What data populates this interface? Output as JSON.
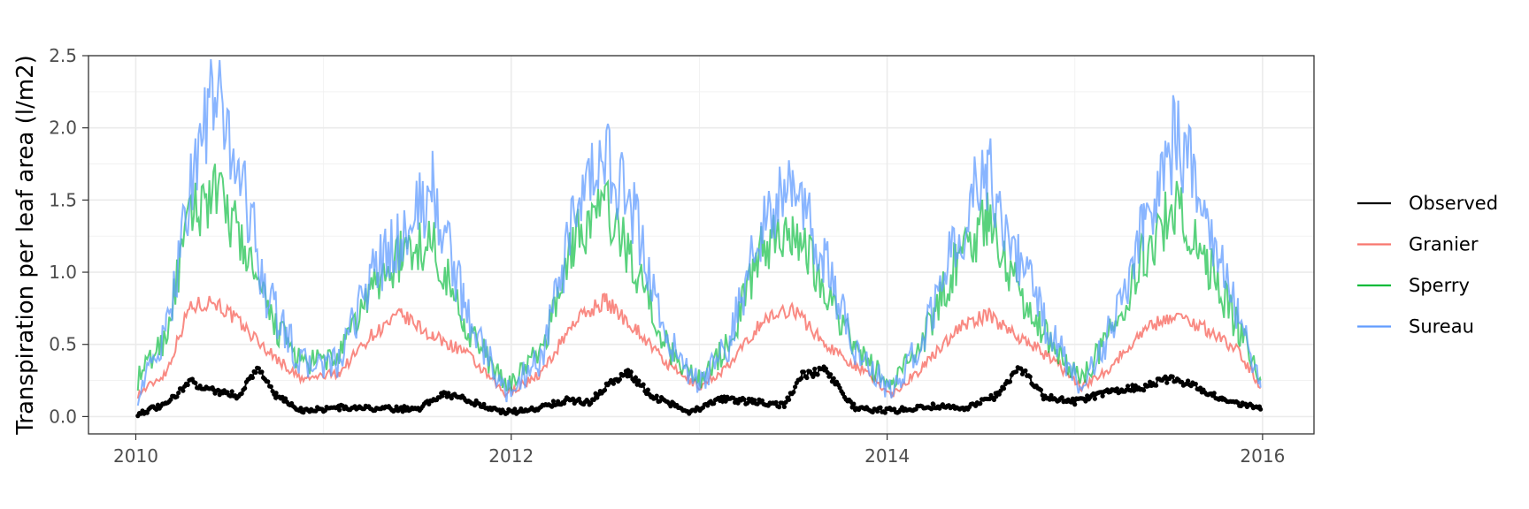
{
  "chart_data": {
    "type": "line",
    "title": "",
    "xlabel": "",
    "ylabel": "Transpiration per leaf area (l/m2)",
    "xlim": [
      "2009-10-01",
      "2016-04-10"
    ],
    "ylim": [
      -0.12,
      2.5
    ],
    "x_ticks": [
      "2010",
      "2012",
      "2014",
      "2016"
    ],
    "y_ticks": [
      "0.0",
      "0.5",
      "1.0",
      "1.5",
      "2.0",
      "2.5"
    ],
    "grid": true,
    "legend_position": "right",
    "series": [
      {
        "name": "Observed",
        "color": "#000000",
        "points": true,
        "note": "seasonal daily series (key points)",
        "x": [
          "2010-01-05",
          "2010-03-01",
          "2010-04-15",
          "2010-06-01",
          "2010-07-20",
          "2010-08-25",
          "2010-10-01",
          "2010-11-20",
          "2011-02-01",
          "2011-06-01",
          "2011-07-10",
          "2011-08-20",
          "2011-10-01",
          "2011-12-15",
          "2012-02-01",
          "2012-04-15",
          "2012-06-01",
          "2012-07-15",
          "2012-08-15",
          "2012-10-01",
          "2012-12-15",
          "2013-02-15",
          "2013-04-15",
          "2013-06-15",
          "2013-07-20",
          "2013-09-01",
          "2013-11-01",
          "2014-01-15",
          "2014-04-01",
          "2014-06-01",
          "2014-08-01",
          "2014-09-15",
          "2014-11-01",
          "2015-01-01",
          "2015-03-15",
          "2015-05-15",
          "2015-07-01",
          "2015-08-15",
          "2015-10-15",
          "2015-12-28"
        ],
        "values": [
          0.02,
          0.08,
          0.24,
          0.18,
          0.14,
          0.34,
          0.14,
          0.04,
          0.06,
          0.05,
          0.06,
          0.16,
          0.12,
          0.03,
          0.04,
          0.11,
          0.1,
          0.24,
          0.3,
          0.14,
          0.03,
          0.12,
          0.1,
          0.08,
          0.28,
          0.32,
          0.05,
          0.04,
          0.07,
          0.05,
          0.14,
          0.34,
          0.14,
          0.1,
          0.18,
          0.2,
          0.26,
          0.22,
          0.12,
          0.05
        ]
      },
      {
        "name": "Granier",
        "color": "#f8766d",
        "x": [
          "2010-01-05",
          "2010-03-01",
          "2010-04-15",
          "2010-06-01",
          "2010-07-20",
          "2010-09-15",
          "2010-11-20",
          "2011-02-01",
          "2011-04-01",
          "2011-06-01",
          "2011-08-01",
          "2011-10-01",
          "2011-12-20",
          "2012-03-01",
          "2012-05-01",
          "2012-07-01",
          "2012-09-01",
          "2012-11-01",
          "2013-01-01",
          "2013-03-01",
          "2013-05-01",
          "2013-07-01",
          "2013-09-01",
          "2013-11-01",
          "2014-01-10",
          "2014-03-15",
          "2014-05-15",
          "2014-07-15",
          "2014-09-15",
          "2014-11-15",
          "2015-01-15",
          "2015-03-15",
          "2015-05-15",
          "2015-07-15",
          "2015-09-15",
          "2015-11-15",
          "2015-12-28"
        ],
        "values": [
          0.15,
          0.3,
          0.75,
          0.8,
          0.65,
          0.45,
          0.25,
          0.3,
          0.55,
          0.7,
          0.55,
          0.45,
          0.15,
          0.3,
          0.65,
          0.8,
          0.6,
          0.35,
          0.2,
          0.35,
          0.65,
          0.75,
          0.5,
          0.35,
          0.15,
          0.35,
          0.6,
          0.7,
          0.55,
          0.4,
          0.2,
          0.35,
          0.6,
          0.7,
          0.6,
          0.45,
          0.2
        ]
      },
      {
        "name": "Sperry",
        "color": "#00ba38",
        "x": [
          "2010-01-05",
          "2010-03-01",
          "2010-04-15",
          "2010-06-01",
          "2010-07-20",
          "2010-09-15",
          "2010-11-20",
          "2011-02-01",
          "2011-04-01",
          "2011-06-01",
          "2011-08-01",
          "2011-10-01",
          "2011-12-20",
          "2012-03-01",
          "2012-05-01",
          "2012-07-01",
          "2012-09-01",
          "2012-11-01",
          "2013-01-01",
          "2013-03-01",
          "2013-05-01",
          "2013-07-01",
          "2013-09-01",
          "2013-11-01",
          "2014-01-10",
          "2014-03-15",
          "2014-05-15",
          "2014-07-15",
          "2014-09-15",
          "2014-11-15",
          "2015-01-15",
          "2015-03-15",
          "2015-05-15",
          "2015-07-15",
          "2015-09-15",
          "2015-11-15",
          "2015-12-28"
        ],
        "values": [
          0.25,
          0.55,
          1.35,
          1.55,
          1.25,
          0.7,
          0.35,
          0.4,
          0.85,
          1.1,
          1.2,
          0.65,
          0.2,
          0.45,
          1.2,
          1.45,
          1.0,
          0.45,
          0.25,
          0.5,
          1.15,
          1.3,
          0.9,
          0.45,
          0.2,
          0.55,
          1.05,
          1.35,
          0.85,
          0.5,
          0.25,
          0.6,
          1.1,
          1.45,
          1.05,
          0.6,
          0.25
        ]
      },
      {
        "name": "Sureau",
        "color": "#619cff",
        "x": [
          "2010-01-05",
          "2010-03-01",
          "2010-04-15",
          "2010-06-01",
          "2010-07-20",
          "2010-09-15",
          "2010-11-20",
          "2011-02-01",
          "2011-04-01",
          "2011-06-01",
          "2011-08-01",
          "2011-10-01",
          "2011-12-20",
          "2012-03-01",
          "2012-05-01",
          "2012-07-01",
          "2012-09-01",
          "2012-11-01",
          "2013-01-01",
          "2013-03-01",
          "2013-05-01",
          "2013-07-01",
          "2013-09-01",
          "2013-11-01",
          "2014-01-10",
          "2014-03-15",
          "2014-05-15",
          "2014-07-15",
          "2014-09-15",
          "2014-11-15",
          "2015-01-15",
          "2015-03-15",
          "2015-05-15",
          "2015-07-15",
          "2015-09-15",
          "2015-11-15",
          "2015-12-28"
        ],
        "values": [
          0.15,
          0.55,
          1.55,
          2.2,
          1.7,
          0.8,
          0.35,
          0.35,
          0.95,
          1.2,
          1.55,
          0.75,
          0.15,
          0.4,
          1.3,
          1.8,
          1.3,
          0.5,
          0.2,
          0.5,
          1.3,
          1.55,
          1.05,
          0.45,
          0.15,
          0.55,
          1.2,
          1.7,
          1.05,
          0.55,
          0.2,
          0.6,
          1.3,
          1.9,
          1.4,
          0.7,
          0.2
        ]
      }
    ]
  }
}
